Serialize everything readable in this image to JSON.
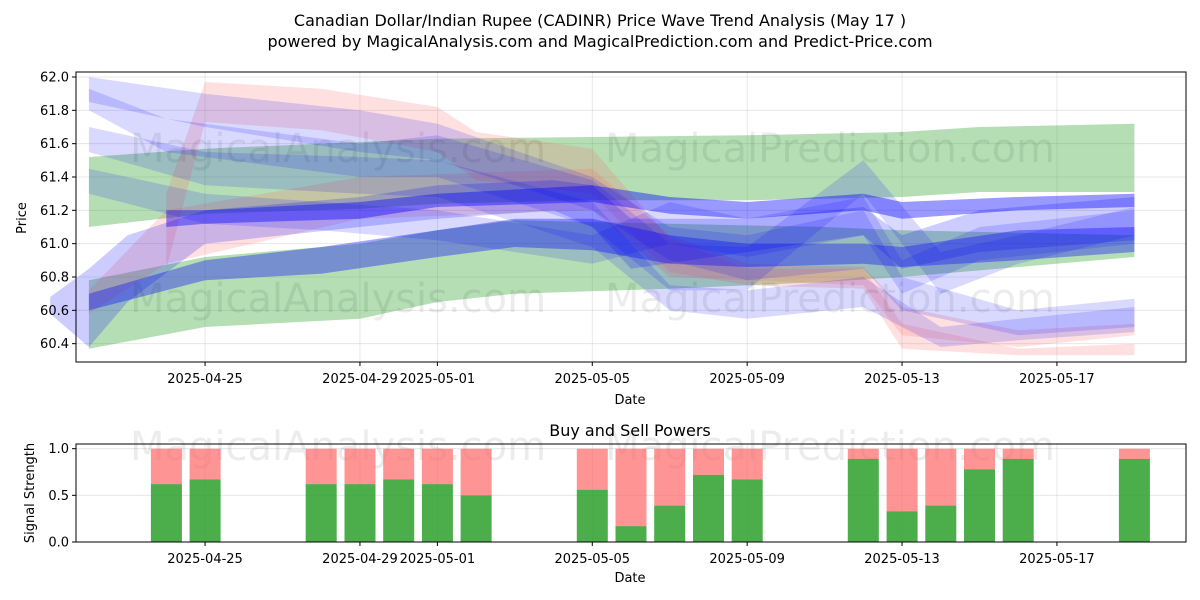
{
  "title_line1": "Canadian Dollar/Indian Rupee (CADINR) Price Wave Trend Analysis (May 17 )",
  "title_line2": "powered by MagicalAnalysis.com and MagicalPrediction.com and Predict-Price.com",
  "watermarks": [
    "MagicalAnalysis.com",
    "MagicalPrediction.com"
  ],
  "colors": {
    "green_band": "#2ca02c",
    "blue_band": "#0000ff",
    "red_band": "#ff6666",
    "buy": "#2ca02c",
    "sell": "#ff0000"
  },
  "chart_data": [
    {
      "type": "area",
      "name": "price-wave-chart",
      "title": "",
      "xlabel": "Date",
      "ylabel": "Price",
      "xlim": [
        "2025-04-21T16:00",
        "2025-05-20T08:00"
      ],
      "ylim": [
        60.29,
        62.03
      ],
      "yticks": [
        60.4,
        60.6,
        60.8,
        61.0,
        61.2,
        61.4,
        61.6,
        61.8,
        62.0
      ],
      "ytick_labels": [
        "60.4",
        "60.6",
        "60.8",
        "61.0",
        "61.2",
        "61.4",
        "61.6",
        "61.8",
        "62.0"
      ],
      "xticks": [
        "2025-04-25",
        "2025-04-29",
        "2025-05-01",
        "2025-05-05",
        "2025-05-09",
        "2025-05-13",
        "2025-05-17"
      ],
      "grid": true,
      "bands": [
        {
          "name": "green-upper-band",
          "color": "green",
          "alpha": 0.35,
          "x": [
            "2025-04-22",
            "2025-04-25",
            "2025-04-29",
            "2025-05-01",
            "2025-05-05",
            "2025-05-09",
            "2025-05-13",
            "2025-05-15",
            "2025-05-19"
          ],
          "upper": [
            61.52,
            61.57,
            61.61,
            61.63,
            61.64,
            61.65,
            61.67,
            61.7,
            61.72
          ],
          "lower": [
            61.1,
            61.18,
            61.21,
            61.24,
            61.26,
            61.26,
            61.28,
            61.31,
            61.31
          ]
        },
        {
          "name": "green-lower-band",
          "color": "green",
          "alpha": 0.35,
          "x": [
            "2025-04-22",
            "2025-04-25",
            "2025-04-29",
            "2025-05-01",
            "2025-05-03",
            "2025-05-07",
            "2025-05-11",
            "2025-05-13",
            "2025-05-19"
          ],
          "upper": [
            60.78,
            60.92,
            61.0,
            61.08,
            61.14,
            61.12,
            61.1,
            61.08,
            61.05
          ],
          "lower": [
            60.37,
            60.5,
            60.55,
            60.65,
            60.7,
            60.73,
            60.77,
            60.8,
            60.92
          ]
        },
        {
          "name": "red-wave-band-1",
          "color": "red",
          "alpha": 0.2,
          "x": [
            "2025-04-24",
            "2025-04-25",
            "2025-04-28",
            "2025-05-01",
            "2025-05-02",
            "2025-05-05",
            "2025-05-07",
            "2025-05-09",
            "2025-05-12",
            "2025-05-13",
            "2025-05-16",
            "2025-05-19"
          ],
          "upper": [
            61.3,
            61.97,
            61.93,
            61.82,
            61.67,
            61.57,
            61.03,
            60.85,
            60.85,
            60.52,
            60.37,
            60.4
          ],
          "lower": [
            60.85,
            61.73,
            61.68,
            61.55,
            61.38,
            61.3,
            60.83,
            60.75,
            60.73,
            60.37,
            60.33,
            60.33
          ]
        },
        {
          "name": "red-wave-band-2",
          "color": "red",
          "alpha": 0.2,
          "x": [
            "2025-04-22",
            "2025-04-24",
            "2025-04-29",
            "2025-05-05",
            "2025-05-07",
            "2025-05-09",
            "2025-05-12",
            "2025-05-13",
            "2025-05-16",
            "2025-05-19"
          ],
          "upper": [
            60.72,
            61.2,
            61.4,
            61.45,
            61.05,
            60.88,
            60.86,
            60.62,
            60.48,
            60.52
          ],
          "lower": [
            60.58,
            60.88,
            61.15,
            61.2,
            60.8,
            60.78,
            60.75,
            60.45,
            60.38,
            60.45
          ]
        },
        {
          "name": "blue-wave-band-1",
          "color": "blue",
          "alpha": 0.15,
          "x": [
            "2025-04-22",
            "2025-04-25",
            "2025-04-29",
            "2025-05-01",
            "2025-05-05",
            "2025-05-07",
            "2025-05-09",
            "2025-05-12",
            "2025-05-13",
            "2025-05-16",
            "2025-05-19"
          ],
          "upper": [
            62.0,
            61.9,
            61.8,
            61.72,
            61.4,
            61.1,
            61.05,
            61.2,
            60.8,
            60.6,
            60.67
          ],
          "lower": [
            61.85,
            61.7,
            61.55,
            61.5,
            61.2,
            60.9,
            60.78,
            60.85,
            60.6,
            60.45,
            60.5
          ]
        },
        {
          "name": "blue-wave-band-2",
          "color": "blue",
          "alpha": 0.15,
          "x": [
            "2025-04-22",
            "2025-04-24",
            "2025-04-29",
            "2025-05-01",
            "2025-05-05",
            "2025-05-07",
            "2025-05-09",
            "2025-05-12",
            "2025-05-14",
            "2025-05-16",
            "2025-05-19"
          ],
          "upper": [
            61.93,
            61.75,
            61.6,
            61.65,
            61.38,
            61.0,
            60.98,
            61.5,
            60.95,
            61.05,
            61.22
          ],
          "lower": [
            61.8,
            61.55,
            61.4,
            61.4,
            61.1,
            60.72,
            60.72,
            61.3,
            60.7,
            60.88,
            61.05
          ]
        },
        {
          "name": "blue-wave-band-3",
          "color": "blue",
          "alpha": 0.15,
          "x": [
            "2025-04-22",
            "2025-04-25",
            "2025-04-29",
            "2025-05-01",
            "2025-05-05",
            "2025-05-07",
            "2025-05-09",
            "2025-05-12",
            "2025-05-14",
            "2025-05-16",
            "2025-05-19"
          ],
          "upper": [
            61.7,
            61.55,
            61.52,
            61.5,
            61.25,
            60.75,
            60.72,
            60.8,
            60.5,
            60.55,
            60.62
          ],
          "lower": [
            61.55,
            61.35,
            61.3,
            61.28,
            60.98,
            60.6,
            60.55,
            60.62,
            60.38,
            60.42,
            60.47
          ]
        },
        {
          "name": "blue-wave-band-4",
          "color": "blue",
          "alpha": 0.15,
          "x": [
            "2025-04-22",
            "2025-04-25",
            "2025-04-28",
            "2025-05-01",
            "2025-05-05",
            "2025-05-07",
            "2025-05-09",
            "2025-05-12",
            "2025-05-13",
            "2025-05-15",
            "2025-05-19"
          ],
          "upper": [
            61.45,
            61.3,
            61.25,
            61.2,
            61.05,
            61.25,
            61.15,
            61.28,
            60.9,
            61.1,
            61.2
          ],
          "lower": [
            61.3,
            61.12,
            61.08,
            61.02,
            60.88,
            61.0,
            60.92,
            61.05,
            60.7,
            60.9,
            61.0
          ]
        },
        {
          "name": "blue-wave-band-5",
          "color": "blue",
          "alpha": 0.2,
          "x": [
            "2025-04-21",
            "2025-04-22",
            "2025-04-23",
            "2025-04-25",
            "2025-04-29",
            "2025-05-01",
            "2025-05-04",
            "2025-05-05",
            "2025-05-06",
            "2025-05-09",
            "2025-05-12",
            "2025-05-13",
            "2025-05-15",
            "2025-05-19"
          ],
          "upper": [
            60.68,
            60.85,
            61.05,
            61.2,
            61.28,
            61.35,
            61.38,
            61.35,
            61.15,
            61.15,
            61.22,
            61.05,
            61.2,
            61.28
          ],
          "lower": [
            60.58,
            60.38,
            60.65,
            61.0,
            61.1,
            61.15,
            61.2,
            61.1,
            60.85,
            60.95,
            61.05,
            60.85,
            60.95,
            61.02
          ]
        },
        {
          "name": "blue-trend-band",
          "color": "blue",
          "alpha": 0.35,
          "x": [
            "2025-04-22",
            "2025-04-25",
            "2025-04-28",
            "2025-05-01",
            "2025-05-03",
            "2025-05-05",
            "2025-05-07",
            "2025-05-09",
            "2025-05-12",
            "2025-05-13",
            "2025-05-16",
            "2025-05-19"
          ],
          "upper": [
            60.7,
            60.9,
            60.98,
            61.08,
            61.15,
            61.15,
            61.05,
            61.0,
            61.0,
            60.98,
            61.08,
            61.1
          ],
          "lower": [
            60.6,
            60.78,
            60.82,
            60.92,
            60.98,
            60.96,
            60.88,
            60.86,
            60.88,
            60.86,
            60.9,
            60.95
          ]
        },
        {
          "name": "blue-mean-band",
          "color": "blue",
          "alpha": 0.4,
          "x": [
            "2025-04-24",
            "2025-04-25",
            "2025-04-29",
            "2025-05-01",
            "2025-05-05",
            "2025-05-07",
            "2025-05-09",
            "2025-05-12",
            "2025-05-13",
            "2025-05-16",
            "2025-05-19"
          ],
          "upper": [
            61.2,
            61.2,
            61.25,
            61.3,
            61.35,
            61.28,
            61.25,
            61.3,
            61.25,
            61.28,
            61.3
          ],
          "lower": [
            61.1,
            61.12,
            61.15,
            61.22,
            61.25,
            61.18,
            61.15,
            61.2,
            61.15,
            61.2,
            61.22
          ]
        }
      ]
    },
    {
      "type": "bar",
      "name": "buy-sell-powers-chart",
      "title": "Buy and Sell Powers",
      "xlabel": "Date",
      "ylabel": "Signal Strength",
      "ylim": [
        0,
        1.05
      ],
      "yticks": [
        0.0,
        0.5,
        1.0
      ],
      "ytick_labels": [
        "0.0",
        "0.5",
        "1.0"
      ],
      "xticks": [
        "2025-04-25",
        "2025-04-29",
        "2025-05-01",
        "2025-05-05",
        "2025-05-09",
        "2025-05-13",
        "2025-05-17"
      ],
      "grid": true,
      "dates": [
        "2025-04-24",
        "2025-04-25",
        "2025-04-28",
        "2025-04-29",
        "2025-04-30",
        "2025-05-01",
        "2025-05-02",
        "2025-05-05",
        "2025-05-06",
        "2025-05-07",
        "2025-05-08",
        "2025-05-09",
        "2025-05-12",
        "2025-05-13",
        "2025-05-14",
        "2025-05-15",
        "2025-05-16",
        "2025-05-19"
      ],
      "series": [
        {
          "name": "Buy",
          "color": "green",
          "values": [
            0.62,
            0.67,
            0.62,
            0.62,
            0.67,
            0.62,
            0.5,
            0.56,
            0.17,
            0.39,
            0.72,
            0.67,
            0.89,
            0.33,
            0.39,
            0.78,
            0.89,
            0.89
          ]
        },
        {
          "name": "Sell",
          "color": "red",
          "values": [
            0.38,
            0.33,
            0.38,
            0.38,
            0.33,
            0.38,
            0.5,
            0.44,
            0.83,
            0.61,
            0.28,
            0.33,
            0.11,
            0.67,
            0.61,
            0.22,
            0.11,
            0.11
          ]
        }
      ]
    }
  ]
}
